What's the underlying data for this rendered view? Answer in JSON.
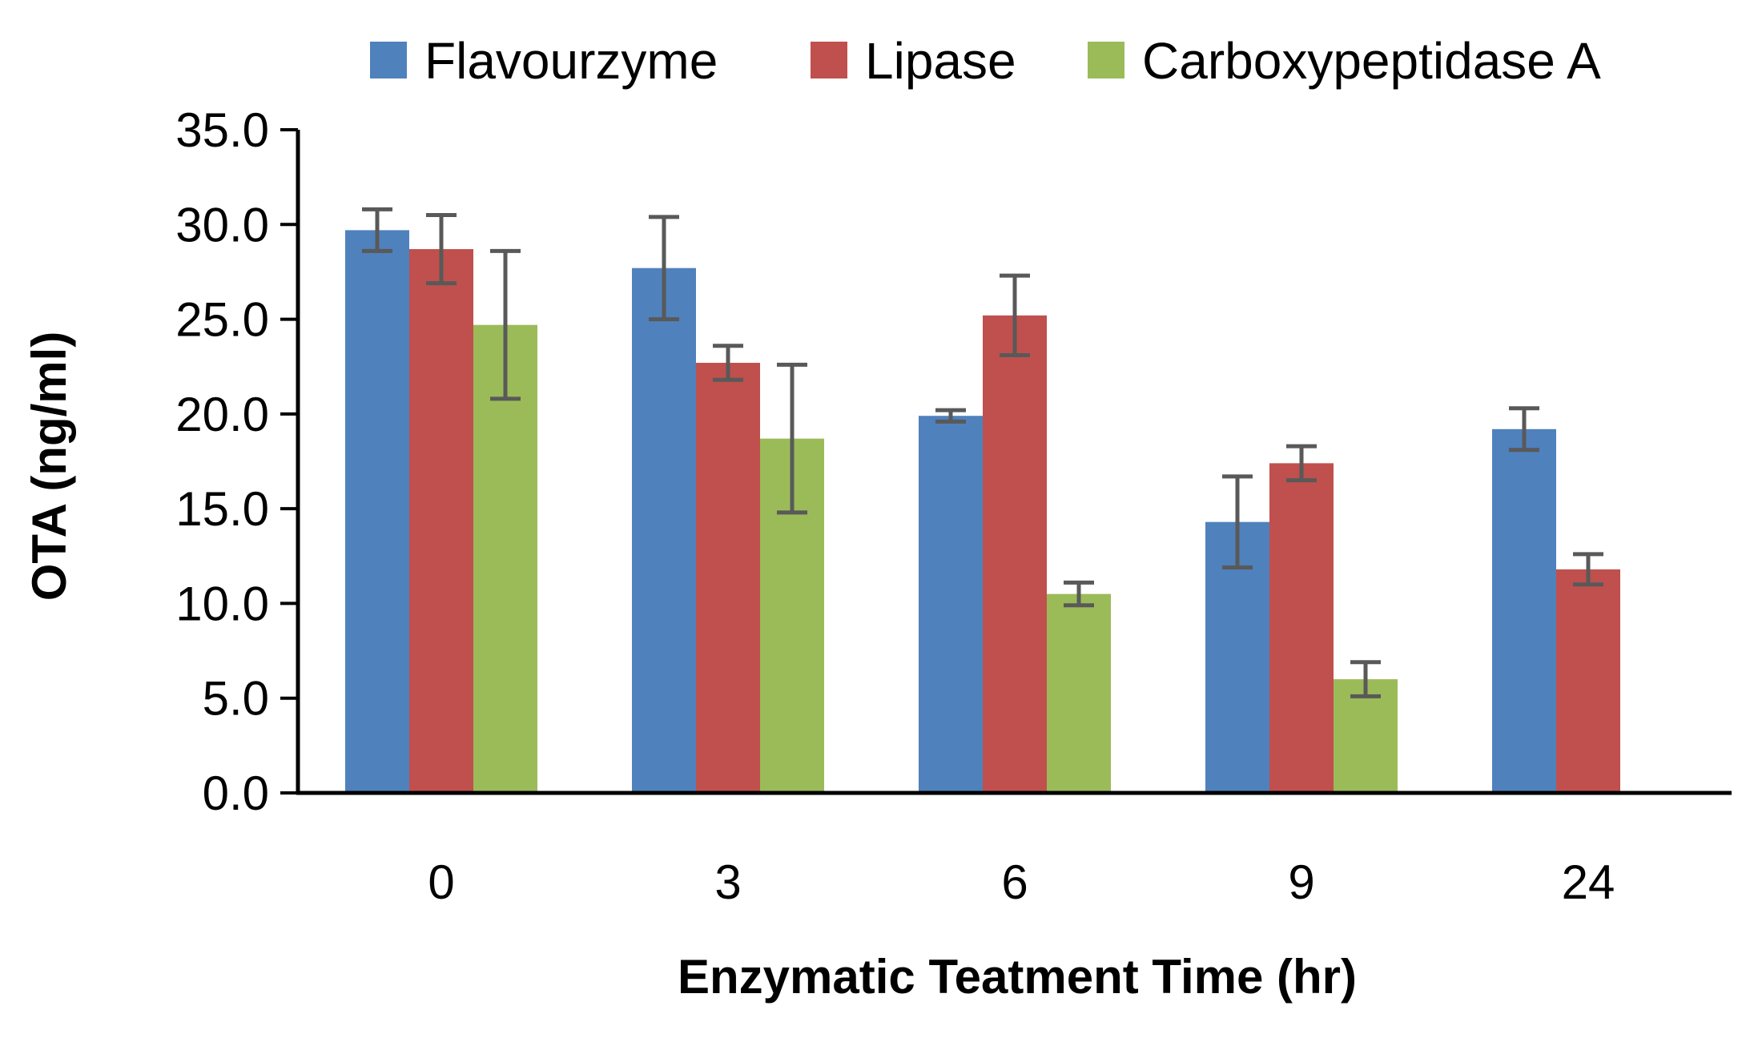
{
  "chart_data": {
    "type": "bar",
    "title": "",
    "xlabel": "Enzymatic Teatment Time (hr)",
    "ylabel": "OTA (ng/ml)",
    "ylim": [
      0,
      35
    ],
    "yticks": [
      "0.0",
      "5.0",
      "10.0",
      "15.0",
      "20.0",
      "25.0",
      "30.0",
      "35.0"
    ],
    "categories": [
      "0",
      "3",
      "6",
      "9",
      "24"
    ],
    "legend_position": "top",
    "grid": false,
    "series": [
      {
        "name": "Flavourzyme",
        "color": "#4F81BD",
        "values": [
          29.7,
          27.7,
          19.9,
          14.3,
          19.2
        ],
        "errors": [
          1.1,
          2.7,
          0.3,
          2.4,
          1.1
        ]
      },
      {
        "name": "Lipase",
        "color": "#C0504D",
        "values": [
          28.7,
          22.7,
          25.2,
          17.4,
          11.8
        ],
        "errors": [
          1.8,
          0.9,
          2.1,
          0.9,
          0.8
        ]
      },
      {
        "name": "Carboxypeptidase A",
        "color": "#9BBB59",
        "values": [
          24.7,
          18.7,
          10.5,
          6.0,
          null
        ],
        "errors": [
          3.9,
          3.9,
          0.6,
          0.9,
          null
        ]
      }
    ],
    "error_bar_color": "#595959"
  }
}
